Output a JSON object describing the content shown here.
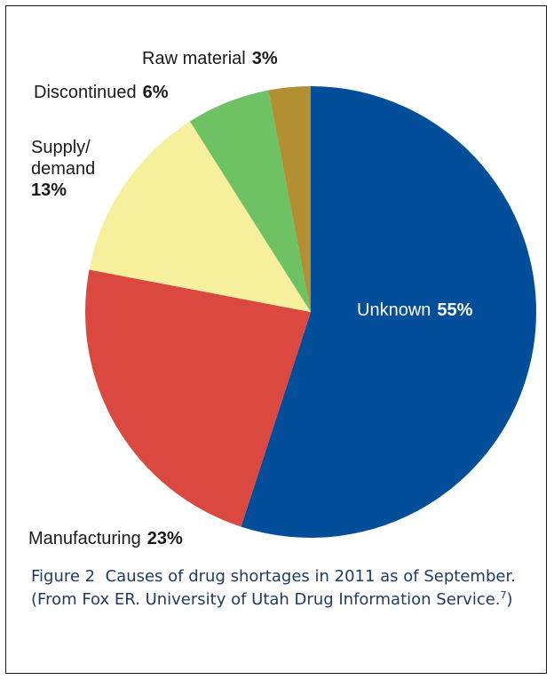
{
  "chart_data": {
    "type": "pie",
    "slices": [
      {
        "label": "Unknown",
        "label_line2": "",
        "label_line3": "",
        "value": 55,
        "value_text": "55%",
        "color": "#024e9b"
      },
      {
        "label": "Manufacturing",
        "label_line2": "",
        "label_line3": "",
        "value": 23,
        "value_text": "23%",
        "color": "#db4840"
      },
      {
        "label": "Supply/",
        "label_line2": "demand",
        "label_line3": "13%",
        "value": 13,
        "value_text": "",
        "color": "#f6f09c"
      },
      {
        "label": "Discontinued",
        "label_line2": "",
        "label_line3": "",
        "value": 6,
        "value_text": "6%",
        "color": "#6fc263"
      },
      {
        "label": "Raw material",
        "label_line2": "",
        "label_line3": "",
        "value": 3,
        "value_text": "3%",
        "color": "#b28f32"
      }
    ]
  },
  "caption": {
    "figure_label": "Figure 2",
    "text": "Causes of drug shortages in 2011 as of September. (From Fox ER. University of Utah Drug Information Service.",
    "ref": "7",
    "close": ")"
  }
}
